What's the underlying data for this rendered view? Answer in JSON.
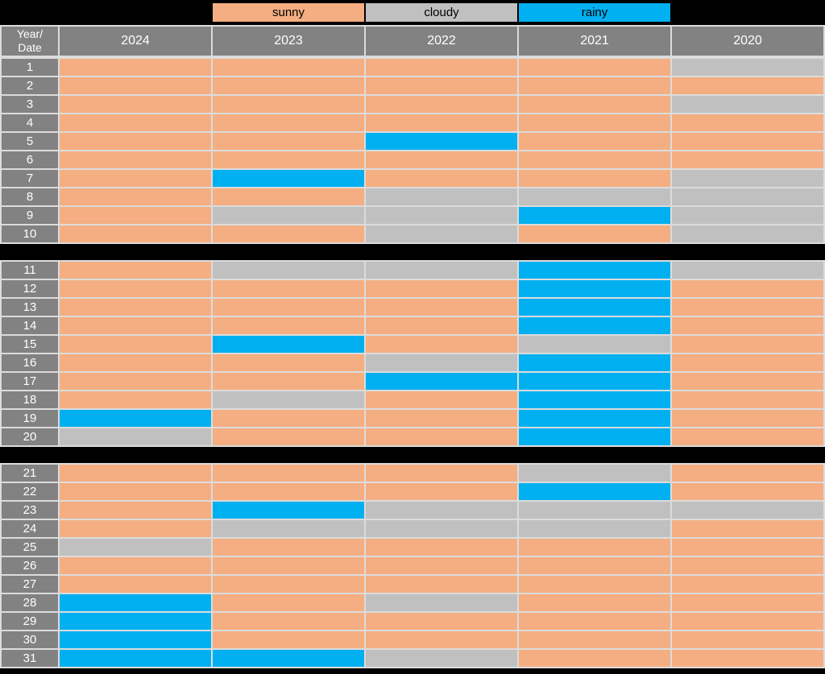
{
  "page": {
    "background": "#000000",
    "gridline_color": "#DCDCDC",
    "header_bg": "#828282"
  },
  "legend": {
    "items": [
      {
        "label": "sunny",
        "color": "#F4AE81"
      },
      {
        "label": "cloudy",
        "color": "#C0C0C0"
      },
      {
        "label": "rainy",
        "color": "#00B0F0"
      }
    ]
  },
  "header": {
    "corner": [
      "Year/",
      "Date"
    ],
    "years": [
      "2024",
      "2023",
      "2022",
      "2021",
      "2020"
    ]
  },
  "chart_data": {
    "type": "heatmap",
    "title": "",
    "row_label_header": "Year/Date",
    "columns": [
      "2024",
      "2023",
      "2022",
      "2021",
      "2020"
    ],
    "categories_note": "rows are dates 1-31, cell value is weather condition",
    "legend_colors": {
      "sunny": "#F4AE81",
      "cloudy": "#C0C0C0",
      "rainy": "#00B0F0"
    },
    "blocks": [
      [
        1,
        10
      ],
      [
        11,
        20
      ],
      [
        21,
        31
      ]
    ],
    "rows": [
      {
        "date": "1",
        "values": [
          "sunny",
          "sunny",
          "sunny",
          "sunny",
          "cloudy"
        ]
      },
      {
        "date": "2",
        "values": [
          "sunny",
          "sunny",
          "sunny",
          "sunny",
          "sunny"
        ]
      },
      {
        "date": "3",
        "values": [
          "sunny",
          "sunny",
          "sunny",
          "sunny",
          "cloudy"
        ]
      },
      {
        "date": "4",
        "values": [
          "sunny",
          "sunny",
          "sunny",
          "sunny",
          "sunny"
        ]
      },
      {
        "date": "5",
        "values": [
          "sunny",
          "sunny",
          "rainy",
          "sunny",
          "sunny"
        ]
      },
      {
        "date": "6",
        "values": [
          "sunny",
          "sunny",
          "sunny",
          "sunny",
          "sunny"
        ]
      },
      {
        "date": "7",
        "values": [
          "sunny",
          "rainy",
          "sunny",
          "sunny",
          "cloudy"
        ]
      },
      {
        "date": "8",
        "values": [
          "sunny",
          "sunny",
          "cloudy",
          "cloudy",
          "cloudy"
        ]
      },
      {
        "date": "9",
        "values": [
          "sunny",
          "cloudy",
          "cloudy",
          "rainy",
          "cloudy"
        ]
      },
      {
        "date": "10",
        "values": [
          "sunny",
          "sunny",
          "cloudy",
          "sunny",
          "cloudy"
        ]
      },
      {
        "date": "11",
        "values": [
          "sunny",
          "cloudy",
          "cloudy",
          "rainy",
          "cloudy"
        ]
      },
      {
        "date": "12",
        "values": [
          "sunny",
          "sunny",
          "sunny",
          "rainy",
          "sunny"
        ]
      },
      {
        "date": "13",
        "values": [
          "sunny",
          "sunny",
          "sunny",
          "rainy",
          "sunny"
        ]
      },
      {
        "date": "14",
        "values": [
          "sunny",
          "sunny",
          "sunny",
          "rainy",
          "sunny"
        ]
      },
      {
        "date": "15",
        "values": [
          "sunny",
          "rainy",
          "sunny",
          "cloudy",
          "sunny"
        ]
      },
      {
        "date": "16",
        "values": [
          "sunny",
          "sunny",
          "cloudy",
          "rainy",
          "sunny"
        ]
      },
      {
        "date": "17",
        "values": [
          "sunny",
          "sunny",
          "rainy",
          "rainy",
          "sunny"
        ]
      },
      {
        "date": "18",
        "values": [
          "sunny",
          "cloudy",
          "sunny",
          "rainy",
          "sunny"
        ]
      },
      {
        "date": "19",
        "values": [
          "rainy",
          "sunny",
          "sunny",
          "rainy",
          "sunny"
        ]
      },
      {
        "date": "20",
        "values": [
          "cloudy",
          "sunny",
          "sunny",
          "rainy",
          "sunny"
        ]
      },
      {
        "date": "21",
        "values": [
          "sunny",
          "sunny",
          "sunny",
          "cloudy",
          "sunny"
        ]
      },
      {
        "date": "22",
        "values": [
          "sunny",
          "sunny",
          "sunny",
          "rainy",
          "sunny"
        ]
      },
      {
        "date": "23",
        "values": [
          "sunny",
          "rainy",
          "cloudy",
          "cloudy",
          "cloudy"
        ]
      },
      {
        "date": "24",
        "values": [
          "sunny",
          "cloudy",
          "cloudy",
          "cloudy",
          "sunny"
        ]
      },
      {
        "date": "25",
        "values": [
          "cloudy",
          "sunny",
          "sunny",
          "sunny",
          "sunny"
        ]
      },
      {
        "date": "26",
        "values": [
          "sunny",
          "sunny",
          "sunny",
          "sunny",
          "sunny"
        ]
      },
      {
        "date": "27",
        "values": [
          "sunny",
          "sunny",
          "sunny",
          "sunny",
          "sunny"
        ]
      },
      {
        "date": "28",
        "values": [
          "rainy",
          "sunny",
          "cloudy",
          "sunny",
          "sunny"
        ]
      },
      {
        "date": "29",
        "values": [
          "rainy",
          "sunny",
          "sunny",
          "sunny",
          "sunny"
        ]
      },
      {
        "date": "30",
        "values": [
          "rainy",
          "sunny",
          "sunny",
          "sunny",
          "sunny"
        ]
      },
      {
        "date": "31",
        "values": [
          "rainy",
          "rainy",
          "cloudy",
          "sunny",
          "sunny"
        ]
      }
    ]
  }
}
